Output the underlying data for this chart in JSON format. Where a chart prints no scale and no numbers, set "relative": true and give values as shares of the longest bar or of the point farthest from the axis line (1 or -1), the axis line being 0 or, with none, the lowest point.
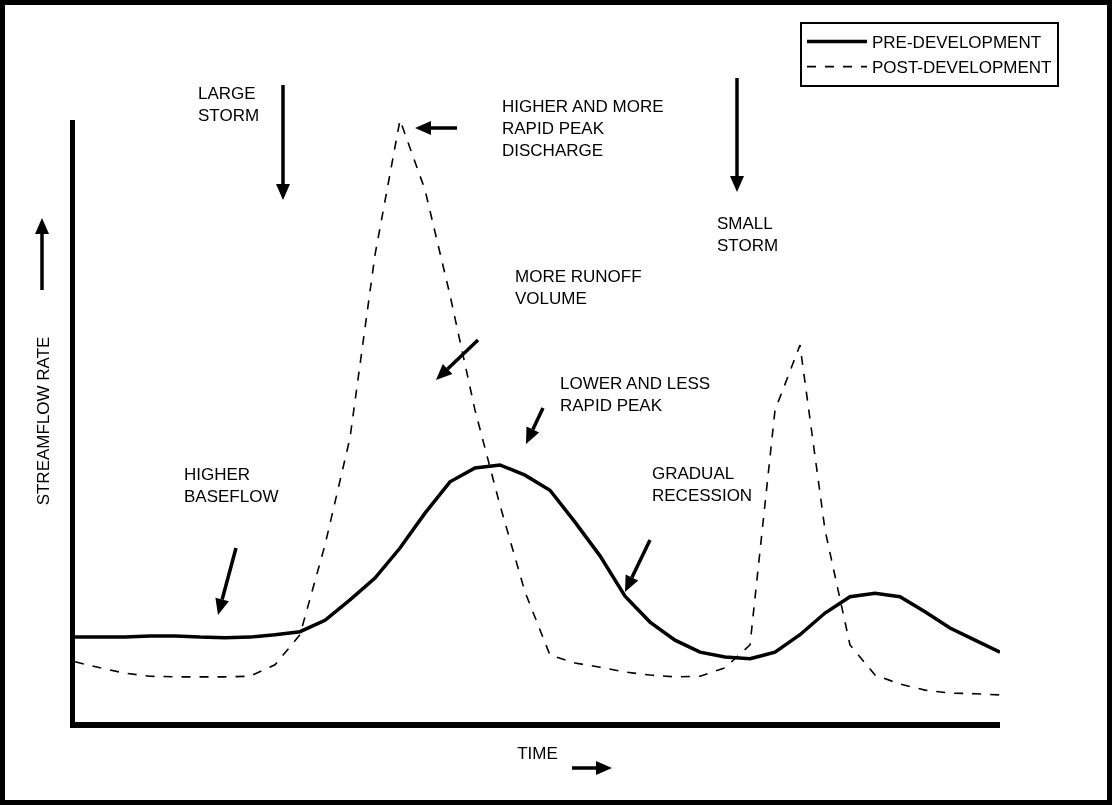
{
  "chart_data": {
    "type": "line",
    "relative": true,
    "xlabel": "TIME",
    "ylabel": "STREAMFLOW RATE",
    "legend": "top right",
    "grid": false,
    "categories": [
      null,
      null,
      null,
      null,
      null,
      null,
      null,
      null,
      null,
      null,
      null,
      null,
      null,
      null,
      null,
      null,
      null,
      null,
      null,
      null,
      null,
      null,
      null,
      null,
      null,
      null,
      null,
      null,
      null,
      null,
      null,
      null,
      null,
      null,
      null,
      null,
      null,
      null
    ],
    "series": [
      {
        "name": "PRE-DEVELOPMENT",
        "color": "#000000",
        "line_style": "solid",
        "values": [
          0.141,
          0.141,
          0.141,
          0.143,
          0.143,
          0.141,
          0.14,
          0.141,
          0.145,
          0.15,
          0.169,
          0.203,
          0.239,
          0.289,
          0.347,
          0.399,
          0.422,
          0.427,
          0.41,
          0.385,
          0.332,
          0.276,
          0.209,
          0.166,
          0.136,
          0.116,
          0.108,
          0.105,
          0.116,
          0.145,
          0.181,
          0.208,
          0.214,
          0.208,
          0.183,
          0.156,
          0.136,
          0.116
        ]
      },
      {
        "name": "POST-DEVELOPMENT",
        "color": "#000000",
        "line_style": "dashed",
        "values": [
          0.1,
          0.09,
          0.081,
          0.076,
          0.075,
          0.075,
          0.075,
          0.076,
          0.095,
          0.145,
          0.294,
          0.472,
          0.776,
          1,
          0.884,
          0.709,
          0.518,
          0.36,
          0.216,
          0.111,
          0.098,
          0.091,
          0.083,
          0.078,
          0.075,
          0.076,
          0.09,
          0.128,
          0.518,
          0.626,
          0.319,
          0.128,
          0.078,
          0.063,
          0.053,
          0.048,
          0.047,
          0.045
        ]
      }
    ],
    "annotations": [
      "LARGE\nSTORM",
      "HIGHER AND MORE\nRAPID PEAK\nDISCHARGE",
      "MORE RUNOFF\nVOLUME",
      "LOWER AND LESS\nRAPID PEAK",
      "GRADUAL\nRECESSION",
      "SMALL\nSTORM",
      "HIGHER\nBASEFLOW"
    ]
  }
}
